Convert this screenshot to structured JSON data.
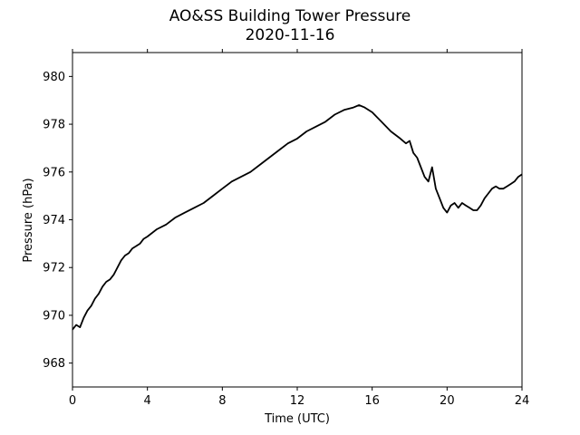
{
  "chart_data": {
    "type": "line",
    "title": "AO&SS Building Tower Pressure",
    "subtitle": "2020-11-16",
    "xlabel": "Time (UTC)",
    "ylabel": "Pressure (hPa)",
    "xlim": [
      0,
      24
    ],
    "ylim": [
      967,
      981
    ],
    "xticks": [
      0,
      4,
      8,
      12,
      16,
      20,
      24
    ],
    "yticks": [
      968,
      970,
      972,
      974,
      976,
      978,
      980
    ],
    "grid": false,
    "series": [
      {
        "color": "#000000",
        "x": [
          0,
          0.2,
          0.4,
          0.6,
          0.8,
          1.0,
          1.2,
          1.4,
          1.6,
          1.8,
          2.0,
          2.2,
          2.4,
          2.6,
          2.8,
          3.0,
          3.2,
          3.4,
          3.6,
          3.8,
          4.0,
          4.5,
          5.0,
          5.5,
          6.0,
          6.5,
          7.0,
          7.5,
          8.0,
          8.5,
          9.0,
          9.5,
          10.0,
          10.5,
          11.0,
          11.5,
          12.0,
          12.5,
          13.0,
          13.5,
          14.0,
          14.5,
          15.0,
          15.3,
          15.6,
          16.0,
          16.5,
          17.0,
          17.5,
          17.8,
          18.0,
          18.2,
          18.4,
          18.6,
          18.8,
          19.0,
          19.2,
          19.4,
          19.6,
          19.8,
          20.0,
          20.2,
          20.4,
          20.6,
          20.8,
          21.0,
          21.2,
          21.4,
          21.6,
          21.8,
          22.0,
          22.2,
          22.4,
          22.6,
          22.8,
          23.0,
          23.2,
          23.4,
          23.6,
          23.8,
          24.0
        ],
        "y": [
          969.4,
          969.6,
          969.5,
          969.9,
          970.2,
          970.4,
          970.7,
          970.9,
          971.2,
          971.4,
          971.5,
          971.7,
          972.0,
          972.3,
          972.5,
          972.6,
          972.8,
          972.9,
          973.0,
          973.2,
          973.3,
          973.6,
          973.8,
          974.1,
          974.3,
          974.5,
          974.7,
          975.0,
          975.3,
          975.6,
          975.8,
          976.0,
          976.3,
          976.6,
          976.9,
          977.2,
          977.4,
          977.7,
          977.9,
          978.1,
          978.4,
          978.6,
          978.7,
          978.8,
          978.7,
          978.5,
          978.1,
          977.7,
          977.4,
          977.2,
          977.3,
          976.8,
          976.6,
          976.2,
          975.8,
          975.6,
          976.2,
          975.3,
          974.9,
          974.5,
          974.3,
          974.6,
          974.7,
          974.5,
          974.7,
          974.6,
          974.5,
          974.4,
          974.4,
          974.6,
          974.9,
          975.1,
          975.3,
          975.4,
          975.3,
          975.3,
          975.4,
          975.5,
          975.6,
          975.8,
          975.9
        ]
      }
    ]
  }
}
